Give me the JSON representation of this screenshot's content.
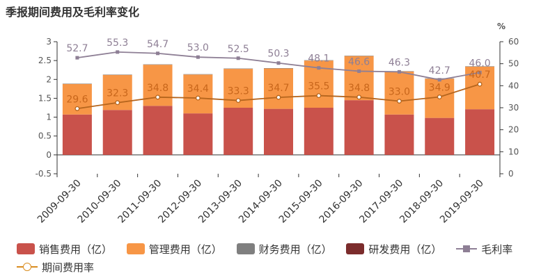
{
  "title": "季报期间费用及毛利率变化",
  "colors": {
    "sales": "#c9524b",
    "admin": "#f79646",
    "finance": "#7f7f7f",
    "rd": "#7b2c2c",
    "gross": "#8e7f95",
    "period": "#b5651d"
  },
  "chart_data": {
    "type": "bar",
    "categories": [
      "2009-09-30",
      "2010-09-30",
      "2011-09-30",
      "2012-09-30",
      "2013-09-30",
      "2014-09-30",
      "2015-09-30",
      "2016-09-30",
      "2017-09-30",
      "2018-09-30",
      "2019-09-30"
    ],
    "left_axis": {
      "ylim": [
        -0.5,
        3
      ],
      "ticks": [
        "-0.5",
        "0",
        "0.5",
        "1",
        "1.5",
        "2",
        "2.5",
        "3"
      ]
    },
    "right_axis": {
      "unit": "%",
      "ylim": [
        0,
        60
      ],
      "ticks": [
        "0",
        "10",
        "20",
        "30",
        "40",
        "50",
        "60"
      ]
    },
    "series": [
      {
        "name": "销售费用（亿）",
        "kind": "bar",
        "values": [
          1.07,
          1.19,
          1.3,
          1.1,
          1.25,
          1.22,
          1.25,
          1.45,
          1.07,
          0.98,
          1.21
        ]
      },
      {
        "name": "管理费用（亿）",
        "kind": "bar",
        "values": [
          0.81,
          0.93,
          1.09,
          1.03,
          1.03,
          1.07,
          1.25,
          1.17,
          1.14,
          1.04,
          1.13
        ]
      },
      {
        "name": "财务费用（亿）",
        "kind": "bar",
        "values": [
          0.01,
          0.01,
          0.01,
          0.01,
          0.01,
          0.01,
          0.01,
          0.01,
          0.01,
          0.01,
          0.01
        ]
      },
      {
        "name": "研发费用（亿）",
        "kind": "bar",
        "values": [
          0,
          0,
          0,
          0,
          0,
          0,
          0,
          0,
          0,
          0,
          0
        ]
      },
      {
        "name": "毛利率",
        "kind": "line",
        "values": [
          52.7,
          55.3,
          54.7,
          53.0,
          52.5,
          50.3,
          48.1,
          46.6,
          46.3,
          42.7,
          46.0
        ],
        "labels": [
          "52.7",
          "55.3",
          "54.7",
          "53.0",
          "52.5",
          "50.3",
          "48.1",
          "46.6",
          "46.3",
          "42.7",
          "46.0"
        ]
      },
      {
        "name": "期间费用率",
        "kind": "line",
        "values": [
          29.6,
          32.3,
          34.8,
          34.4,
          33.3,
          34.7,
          35.5,
          34.8,
          33.0,
          34.9,
          40.7
        ],
        "labels": [
          "29.6",
          "32.3",
          "34.8",
          "34.4",
          "33.3",
          "34.7",
          "35.5",
          "34.8",
          "33.0",
          "34.9",
          "40.7"
        ]
      }
    ],
    "grid": false,
    "legend": "bottom"
  }
}
